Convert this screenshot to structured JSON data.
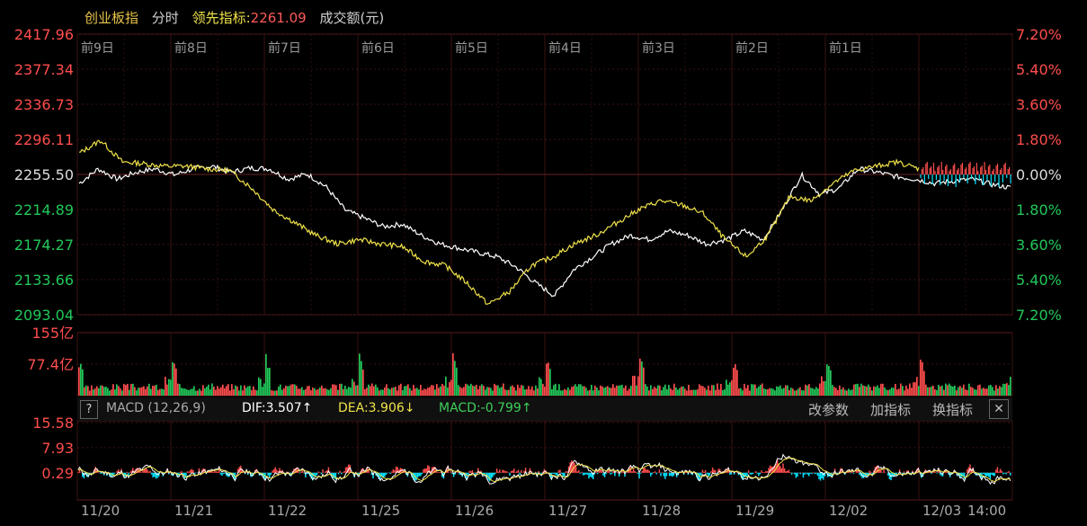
{
  "header": {
    "index_name": "创业板指",
    "period": "分时",
    "lead_label": "领先指标:",
    "lead_value": "2261.09",
    "volume_label": "成交额(元)"
  },
  "macd_bar": {
    "help": "?",
    "name": "MACD (12,26,9)",
    "dif": "DIF:3.507↑",
    "dea": "DEA:3.906↓",
    "macd": "MACD:-0.799↑",
    "buttons": [
      "改参数",
      "加指标",
      "换指标"
    ],
    "close": "✕"
  },
  "colors": {
    "up": "#ff4d4d",
    "down": "#22c85a",
    "price_line": "#ffffff",
    "lead_line": "#f0e24a",
    "macd_neg": "#00e5ff",
    "grid": "#3a1212"
  },
  "chart_data": [
    {
      "type": "line",
      "name": "price",
      "y_ticks_left": [
        "2417.96",
        "2377.34",
        "2336.73",
        "2296.11",
        "2255.50",
        "2214.89",
        "2174.27",
        "2133.66",
        "2093.04"
      ],
      "y_ticks_right": [
        "7.20%",
        "5.40%",
        "3.60%",
        "1.80%",
        "0.00%",
        "1.80%",
        "3.60%",
        "5.40%",
        "7.20%"
      ],
      "ylim": [
        2093.04,
        2417.96
      ],
      "day_labels": [
        "前9日",
        "前8日",
        "前7日",
        "前6日",
        "前5日",
        "前4日",
        "前3日",
        "前2日",
        "前1日",
        ""
      ],
      "series": [
        {
          "values_white": [
            2245,
            2262,
            2250,
            2258,
            2262,
            2255,
            2262,
            2265,
            2258,
            2263,
            2262,
            2250,
            2256,
            2241,
            2214,
            2205,
            2195,
            2198,
            2185,
            2175,
            2170,
            2165,
            2160,
            2148,
            2130,
            2115,
            2145,
            2160,
            2175,
            2185,
            2180,
            2190,
            2185,
            2175,
            2180,
            2190,
            2180,
            2215,
            2255,
            2232,
            2240,
            2262,
            2258,
            2253,
            2250,
            2245,
            2248,
            2250,
            2244,
            2240
          ]
        },
        {
          "values_yellow": [
            2280,
            2295,
            2270,
            2268,
            2265,
            2265,
            2262,
            2260,
            2240,
            2215,
            2200,
            2185,
            2175,
            2180,
            2175,
            2172,
            2155,
            2150,
            2130,
            2105,
            2120,
            2150,
            2160,
            2175,
            2185,
            2200,
            2215,
            2225,
            2220,
            2210,
            2180,
            2160,
            2185,
            2230,
            2225,
            2245,
            2260,
            2265,
            2270,
            2262
          ]
        }
      ]
    },
    {
      "type": "bar",
      "name": "volume",
      "y_ticks": [
        "155亿",
        "77.4亿"
      ],
      "ylim": [
        0,
        155
      ]
    },
    {
      "type": "line",
      "name": "macd",
      "y_ticks": [
        "15.58",
        "7.93",
        "0.29"
      ],
      "ylim": [
        -8,
        15.58
      ],
      "x_labels": [
        "11/20",
        "11/21",
        "11/22",
        "11/25",
        "11/26",
        "11/27",
        "11/28",
        "11/29",
        "12/02",
        "12/03",
        "14:00"
      ]
    }
  ]
}
